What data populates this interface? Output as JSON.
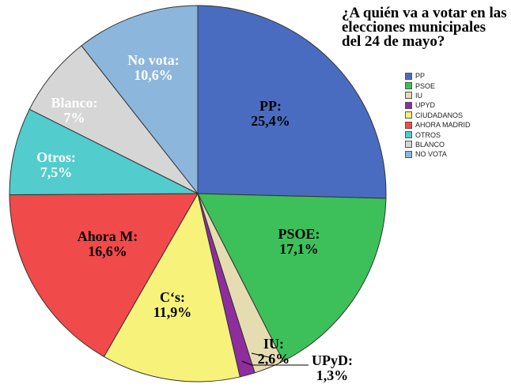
{
  "chart_data": {
    "type": "pie",
    "title": "¿A quién va a votar en las elecciones municipales del 24 de mayo?",
    "slices": [
      {
        "legend": "PP",
        "label": "PP:",
        "pct_text": "25,4%",
        "value": 25.4,
        "color": "#4a6cc0",
        "text_color": "#000000"
      },
      {
        "legend": "PSOE",
        "label": "PSOE:",
        "pct_text": "17,1%",
        "value": 17.1,
        "color": "#3dc05a",
        "text_color": "#000000"
      },
      {
        "legend": "IU",
        "label": "IU:",
        "pct_text": "2,6%",
        "value": 2.6,
        "color": "#e6dcb1",
        "text_color": "#000000"
      },
      {
        "legend": "UPYD",
        "label": "UPyD:",
        "pct_text": "1,3%",
        "value": 1.3,
        "color": "#8e2d9e",
        "text_color": "#000000"
      },
      {
        "legend": "CIUDADANOS",
        "label": "C‘s:",
        "pct_text": "11,9%",
        "value": 11.9,
        "color": "#f7f27a",
        "text_color": "#000000"
      },
      {
        "legend": "AHORA MADRID",
        "label": "Ahora M:",
        "pct_text": "16,6%",
        "value": 16.6,
        "color": "#f04a4a",
        "text_color": "#000000"
      },
      {
        "legend": "OTROS",
        "label": "Otros:",
        "pct_text": "7,5%",
        "value": 7.5,
        "color": "#52cccc",
        "text_color": "#ffffff"
      },
      {
        "legend": "BLANCO",
        "label": "Blanco:",
        "pct_text": "7%",
        "value": 7.0,
        "color": "#d6d6d6",
        "text_color": "#ffffff"
      },
      {
        "legend": "NO VOTA",
        "label": "No vota:",
        "pct_text": "10,6%",
        "value": 10.6,
        "color": "#8cb6dc",
        "text_color": "#ffffff"
      }
    ],
    "start": "12 o'clock",
    "direction": "clockwise",
    "legend_position": "right"
  }
}
